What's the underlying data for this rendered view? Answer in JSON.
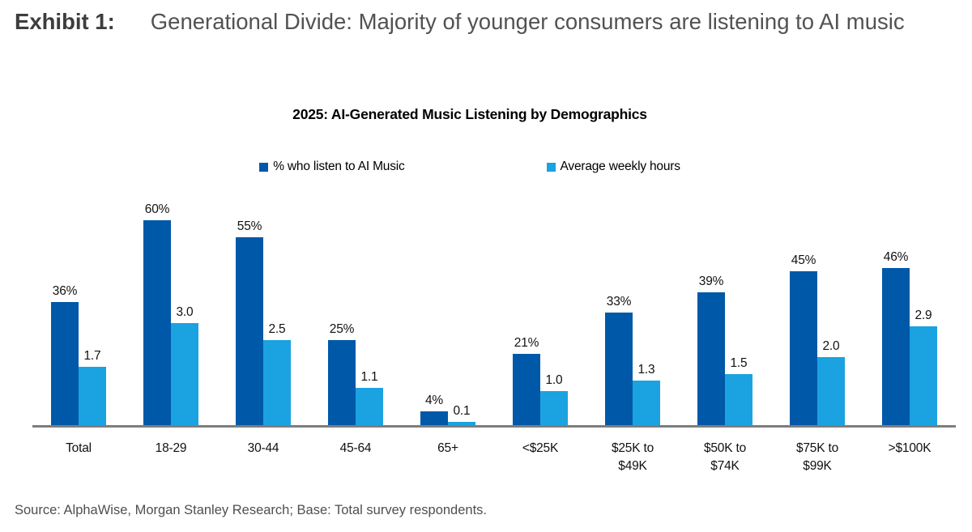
{
  "header": {
    "exhibit_label": "Exhibit 1:",
    "title": "Generational Divide: Majority of younger consumers are listening to AI music"
  },
  "source_note": "Source: AlphaWise, Morgan Stanley Research; Base: Total survey respondents.",
  "colors": {
    "pct_bar": "#0058A8",
    "hours_bar": "#1BA2E1",
    "axis_line": "#7d7d7d"
  },
  "chart_data": {
    "type": "bar",
    "title": "2025: AI-Generated Music Listening by Demographics",
    "grid": false,
    "legend_position": "top",
    "categories": [
      "Total",
      "18-29",
      "30-44",
      "45-64",
      "65+",
      "<$25K",
      "$25K to\n$49K",
      "$50K to\n$74K",
      "$75K to\n$99K",
      ">$100K"
    ],
    "series": [
      {
        "name": "% who listen to AI Music",
        "color": "#0058A8",
        "axis_max": 70,
        "values": [
          36,
          60,
          55,
          25,
          4,
          21,
          33,
          39,
          45,
          46
        ],
        "labels": [
          "36%",
          "60%",
          "55%",
          "25%",
          "4%",
          "21%",
          "33%",
          "39%",
          "45%",
          "46%"
        ]
      },
      {
        "name": "Average weekly hours",
        "color": "#1BA2E1",
        "axis_max": 7,
        "values": [
          1.7,
          3.0,
          2.5,
          1.1,
          0.1,
          1.0,
          1.3,
          1.5,
          2.0,
          2.9
        ],
        "labels": [
          "1.7",
          "3.0",
          "2.5",
          "1.1",
          "0.1",
          "1.0",
          "1.3",
          "1.5",
          "2.0",
          "2.9"
        ]
      }
    ]
  }
}
